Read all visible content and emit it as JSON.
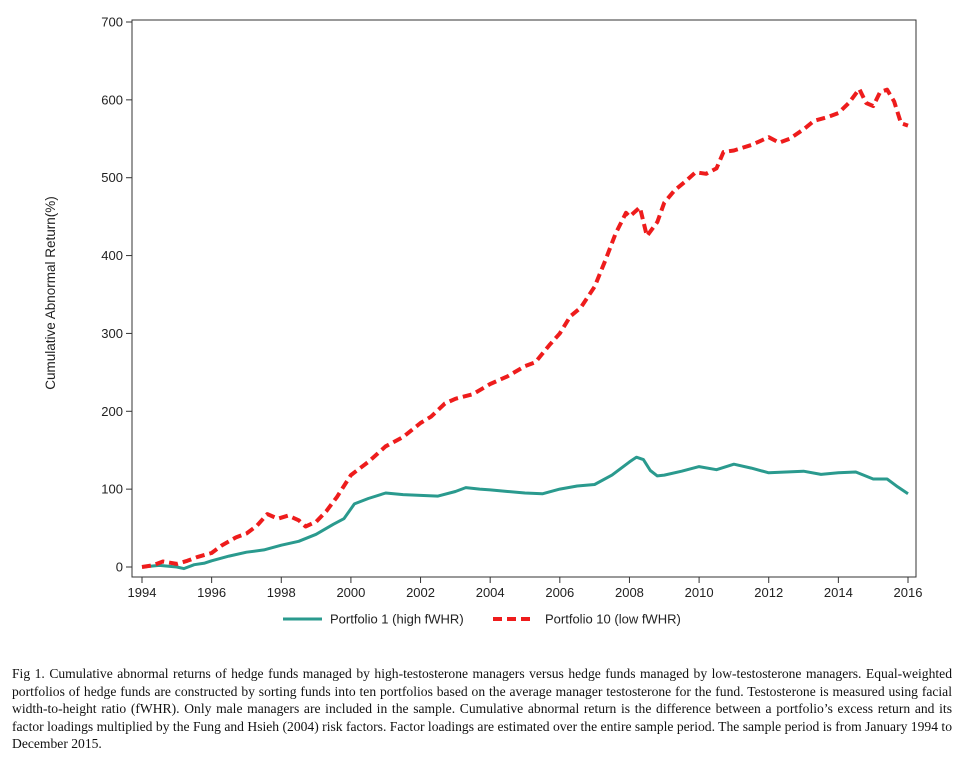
{
  "chart_data": {
    "type": "line",
    "title": "",
    "xlabel": "",
    "ylabel": "Cumulative Abnormal Return(%)",
    "xlim": [
      1994,
      2016
    ],
    "ylim": [
      0,
      700
    ],
    "x_ticks": [
      "1994",
      "1996",
      "1998",
      "2000",
      "2002",
      "2004",
      "2006",
      "2008",
      "2010",
      "2012",
      "2014",
      "2016"
    ],
    "y_ticks": [
      "0",
      "100",
      "200",
      "300",
      "400",
      "500",
      "600",
      "700"
    ],
    "grid": false,
    "legend_position": "bottom",
    "series": [
      {
        "name": "Portfolio 1 (high fWHR)",
        "color": "#2a9a8e",
        "style": "solid",
        "points": [
          [
            1994.0,
            0
          ],
          [
            1994.5,
            2
          ],
          [
            1995.0,
            0
          ],
          [
            1995.2,
            -2
          ],
          [
            1995.5,
            3
          ],
          [
            1995.8,
            5
          ],
          [
            1996.0,
            8
          ],
          [
            1996.5,
            14
          ],
          [
            1997.0,
            19
          ],
          [
            1997.5,
            22
          ],
          [
            1998.0,
            28
          ],
          [
            1998.5,
            33
          ],
          [
            1999.0,
            42
          ],
          [
            1999.5,
            55
          ],
          [
            1999.8,
            62
          ],
          [
            2000.1,
            81
          ],
          [
            2000.5,
            88
          ],
          [
            2001.0,
            95
          ],
          [
            2001.5,
            93
          ],
          [
            2002.0,
            92
          ],
          [
            2002.5,
            91
          ],
          [
            2003.0,
            97
          ],
          [
            2003.3,
            102
          ],
          [
            2003.7,
            100
          ],
          [
            2004.0,
            99
          ],
          [
            2004.5,
            97
          ],
          [
            2005.0,
            95
          ],
          [
            2005.5,
            94
          ],
          [
            2006.0,
            100
          ],
          [
            2006.5,
            104
          ],
          [
            2007.0,
            106
          ],
          [
            2007.5,
            118
          ],
          [
            2008.0,
            135
          ],
          [
            2008.2,
            141
          ],
          [
            2008.4,
            138
          ],
          [
            2008.6,
            124
          ],
          [
            2008.8,
            117
          ],
          [
            2009.0,
            118
          ],
          [
            2009.5,
            123
          ],
          [
            2010.0,
            129
          ],
          [
            2010.5,
            125
          ],
          [
            2011.0,
            132
          ],
          [
            2011.5,
            127
          ],
          [
            2012.0,
            121
          ],
          [
            2012.5,
            122
          ],
          [
            2013.0,
            123
          ],
          [
            2013.5,
            119
          ],
          [
            2014.0,
            121
          ],
          [
            2014.5,
            122
          ],
          [
            2015.0,
            113
          ],
          [
            2015.4,
            113
          ],
          [
            2015.7,
            103
          ],
          [
            2016.0,
            94
          ]
        ]
      },
      {
        "name": "Portfolio 10 (low fWHR)",
        "color": "#ee1c1c",
        "style": "dashed",
        "points": [
          [
            1994.0,
            0
          ],
          [
            1994.3,
            2
          ],
          [
            1994.6,
            7
          ],
          [
            1995.0,
            4
          ],
          [
            1995.3,
            8
          ],
          [
            1995.6,
            13
          ],
          [
            1996.0,
            18
          ],
          [
            1996.3,
            28
          ],
          [
            1996.7,
            38
          ],
          [
            1997.0,
            43
          ],
          [
            1997.3,
            53
          ],
          [
            1997.6,
            68
          ],
          [
            1997.9,
            62
          ],
          [
            1998.2,
            66
          ],
          [
            1998.5,
            60
          ],
          [
            1998.7,
            52
          ],
          [
            1999.0,
            58
          ],
          [
            1999.3,
            72
          ],
          [
            1999.6,
            90
          ],
          [
            2000.0,
            118
          ],
          [
            2000.5,
            135
          ],
          [
            2001.0,
            155
          ],
          [
            2001.5,
            167
          ],
          [
            2002.0,
            185
          ],
          [
            2002.3,
            193
          ],
          [
            2002.7,
            210
          ],
          [
            2003.0,
            216
          ],
          [
            2003.5,
            222
          ],
          [
            2004.0,
            235
          ],
          [
            2004.5,
            245
          ],
          [
            2005.0,
            258
          ],
          [
            2005.3,
            263
          ],
          [
            2005.7,
            285
          ],
          [
            2006.0,
            300
          ],
          [
            2006.3,
            322
          ],
          [
            2006.6,
            333
          ],
          [
            2007.0,
            360
          ],
          [
            2007.3,
            393
          ],
          [
            2007.6,
            428
          ],
          [
            2007.9,
            455
          ],
          [
            2008.0,
            450
          ],
          [
            2008.3,
            462
          ],
          [
            2008.5,
            425
          ],
          [
            2008.8,
            443
          ],
          [
            2009.0,
            468
          ],
          [
            2009.3,
            484
          ],
          [
            2009.6,
            495
          ],
          [
            2009.9,
            507
          ],
          [
            2010.2,
            505
          ],
          [
            2010.5,
            512
          ],
          [
            2010.7,
            533
          ],
          [
            2011.0,
            535
          ],
          [
            2011.5,
            542
          ],
          [
            2012.0,
            552
          ],
          [
            2012.3,
            545
          ],
          [
            2012.6,
            550
          ],
          [
            2013.0,
            562
          ],
          [
            2013.3,
            573
          ],
          [
            2013.7,
            578
          ],
          [
            2014.0,
            583
          ],
          [
            2014.3,
            596
          ],
          [
            2014.6,
            614
          ],
          [
            2014.8,
            596
          ],
          [
            2015.0,
            592
          ],
          [
            2015.2,
            610
          ],
          [
            2015.4,
            613
          ],
          [
            2015.6,
            598
          ],
          [
            2015.8,
            570
          ],
          [
            2016.0,
            567
          ]
        ]
      }
    ]
  },
  "caption": "Fig 1. Cumulative abnormal returns of hedge funds managed by high-testosterone managers versus hedge funds managed by low-testosterone managers. Equal-weighted portfolios of hedge funds are constructed by sorting funds into ten portfolios based on the average manager testosterone for the fund. Testosterone is measured using facial width-to-height ratio (fWHR). Only male managers are included in the sample. Cumulative abnormal return is the difference between a portfolio’s excess return and its factor loadings multiplied by the Fung and Hsieh (2004) risk factors. Factor loadings are estimated over the entire sample period. The sample period is from January 1994 to December 2015."
}
